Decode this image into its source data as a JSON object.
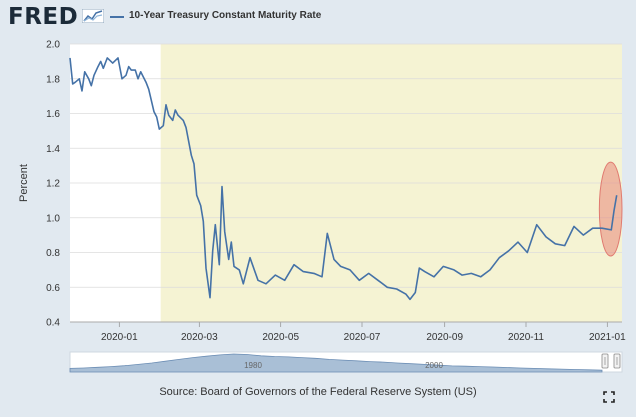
{
  "header": {
    "logo": "FRED",
    "legend_label": "10-Year Treasury Constant Maturity Rate"
  },
  "source": "Source: Board of Governors of the Federal Reserve System (US)",
  "navigator": {
    "labels": [
      "1980",
      "2000"
    ]
  },
  "colors": {
    "series": "#4572a7",
    "recession_band": "#f5f3d3",
    "highlight": "#e8867a",
    "background": "#e1e9f0"
  },
  "chart_data": {
    "type": "line",
    "ylabel": "Percent",
    "ylim": [
      0.4,
      2.0
    ],
    "yticks": [
      "0.4",
      "0.6",
      "0.8",
      "1.0",
      "1.2",
      "1.4",
      "1.6",
      "1.8",
      "2.0"
    ],
    "xtick_labels": [
      "2020-01",
      "2020-03",
      "2020-05",
      "2020-07",
      "2020-09",
      "2020-11",
      "2021-01"
    ],
    "xtick_dates": [
      "2020-01-01",
      "2020-03-01",
      "2020-05-01",
      "2020-07-01",
      "2020-09-01",
      "2020-11-01",
      "2021-01-01"
    ],
    "xlim": [
      "2019-11-25",
      "2021-01-12"
    ],
    "shaded_region": {
      "start": "2020-02-01",
      "end": "2021-01-12"
    },
    "highlight_region": {
      "start": "2020-12-26",
      "end": "2021-01-12",
      "ymin": 0.78,
      "ymax": 1.32
    },
    "series": [
      {
        "name": "10-Year Treasury Constant Maturity Rate",
        "x": [
          "2019-11-25",
          "2019-11-27",
          "2019-11-29",
          "2019-12-02",
          "2019-12-04",
          "2019-12-06",
          "2019-12-09",
          "2019-12-11",
          "2019-12-13",
          "2019-12-16",
          "2019-12-18",
          "2019-12-20",
          "2019-12-23",
          "2019-12-27",
          "2019-12-31",
          "2020-01-03",
          "2020-01-06",
          "2020-01-08",
          "2020-01-10",
          "2020-01-13",
          "2020-01-15",
          "2020-01-17",
          "2020-01-21",
          "2020-01-23",
          "2020-01-27",
          "2020-01-29",
          "2020-01-31",
          "2020-02-03",
          "2020-02-05",
          "2020-02-07",
          "2020-02-10",
          "2020-02-12",
          "2020-02-14",
          "2020-02-18",
          "2020-02-20",
          "2020-02-24",
          "2020-02-26",
          "2020-02-28",
          "2020-03-02",
          "2020-03-04",
          "2020-03-06",
          "2020-03-09",
          "2020-03-11",
          "2020-03-13",
          "2020-03-16",
          "2020-03-18",
          "2020-03-20",
          "2020-03-23",
          "2020-03-25",
          "2020-03-27",
          "2020-03-31",
          "2020-04-03",
          "2020-04-08",
          "2020-04-14",
          "2020-04-20",
          "2020-04-27",
          "2020-05-04",
          "2020-05-11",
          "2020-05-18",
          "2020-05-26",
          "2020-06-01",
          "2020-06-05",
          "2020-06-10",
          "2020-06-15",
          "2020-06-22",
          "2020-06-29",
          "2020-07-06",
          "2020-07-13",
          "2020-07-20",
          "2020-07-27",
          "2020-08-03",
          "2020-08-06",
          "2020-08-10",
          "2020-08-13",
          "2020-08-17",
          "2020-08-24",
          "2020-08-31",
          "2020-09-08",
          "2020-09-14",
          "2020-09-21",
          "2020-09-28",
          "2020-10-05",
          "2020-10-12",
          "2020-10-19",
          "2020-10-26",
          "2020-11-02",
          "2020-11-09",
          "2020-11-16",
          "2020-11-23",
          "2020-11-30",
          "2020-12-07",
          "2020-12-14",
          "2020-12-21",
          "2020-12-28",
          "2021-01-04",
          "2021-01-06",
          "2021-01-08"
        ],
        "y": [
          1.92,
          1.77,
          1.78,
          1.8,
          1.73,
          1.84,
          1.8,
          1.76,
          1.82,
          1.87,
          1.9,
          1.86,
          1.92,
          1.89,
          1.92,
          1.8,
          1.82,
          1.87,
          1.85,
          1.85,
          1.8,
          1.84,
          1.78,
          1.74,
          1.61,
          1.58,
          1.51,
          1.53,
          1.65,
          1.59,
          1.56,
          1.62,
          1.59,
          1.56,
          1.52,
          1.36,
          1.31,
          1.13,
          1.07,
          0.98,
          0.71,
          0.54,
          0.81,
          0.96,
          0.73,
          1.18,
          0.92,
          0.76,
          0.86,
          0.72,
          0.7,
          0.62,
          0.77,
          0.64,
          0.62,
          0.67,
          0.64,
          0.73,
          0.69,
          0.68,
          0.66,
          0.91,
          0.76,
          0.72,
          0.7,
          0.64,
          0.68,
          0.64,
          0.6,
          0.59,
          0.56,
          0.53,
          0.57,
          0.71,
          0.69,
          0.66,
          0.72,
          0.7,
          0.67,
          0.68,
          0.66,
          0.7,
          0.77,
          0.81,
          0.86,
          0.8,
          0.96,
          0.89,
          0.85,
          0.84,
          0.95,
          0.9,
          0.94,
          0.94,
          0.93,
          1.04,
          1.13
        ]
      }
    ],
    "navigator_series": [
      0.2,
      0.22,
      0.26,
      0.3,
      0.35,
      0.42,
      0.5,
      0.6,
      0.7,
      0.8,
      0.88,
      0.95,
      1.0,
      0.97,
      0.9,
      0.86,
      0.84,
      0.8,
      0.76,
      0.7,
      0.66,
      0.62,
      0.58,
      0.55,
      0.5,
      0.46,
      0.42,
      0.38,
      0.34,
      0.32,
      0.3,
      0.28,
      0.25,
      0.22,
      0.2,
      0.18,
      0.16,
      0.14,
      0.12,
      0.1
    ]
  }
}
